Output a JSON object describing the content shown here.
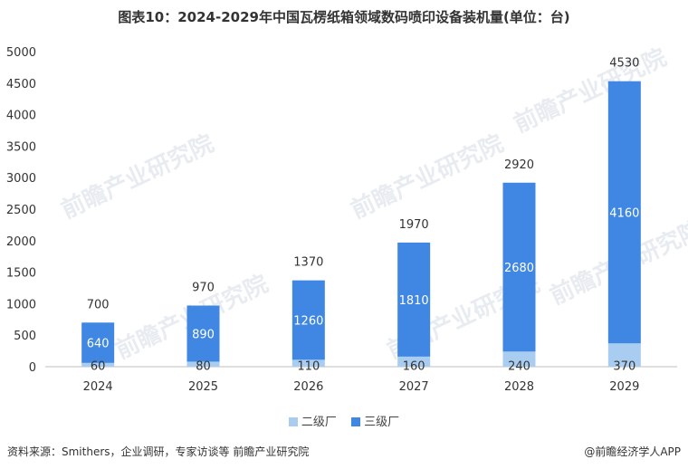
{
  "header": {
    "title": "图表10：2024-2029年中国瓦楞纸箱领域数码喷印设备装机量(单位：台)"
  },
  "watermark": "前瞻产业研究院",
  "colors": {
    "series1": "#a8cdf0",
    "series2": "#3f87e2",
    "axis": "#bfbfbf",
    "text": "#333333"
  },
  "chart_data": {
    "type": "bar",
    "stacked": true,
    "categories": [
      "2024",
      "2025",
      "2026",
      "2027",
      "2028",
      "2029"
    ],
    "series": [
      {
        "name": "二级厂",
        "values": [
          60,
          80,
          110,
          160,
          240,
          370
        ]
      },
      {
        "name": "三级厂",
        "values": [
          640,
          890,
          1260,
          1810,
          2680,
          4160
        ]
      }
    ],
    "totals": [
      700,
      970,
      1370,
      1970,
      2920,
      4530
    ],
    "ylim": [
      0,
      5000
    ],
    "yticks": [
      0,
      500,
      1000,
      1500,
      2000,
      2500,
      3000,
      3500,
      4000,
      4500,
      5000
    ],
    "grid": false,
    "legend": "bottom"
  },
  "legend": {
    "items": [
      {
        "label": "二级厂"
      },
      {
        "label": "三级厂"
      }
    ]
  },
  "footer": {
    "source": "资料来源：Smithers，企业调研，专家访谈等 前瞻产业研究院",
    "credit": "@前瞻经济学人APP"
  }
}
